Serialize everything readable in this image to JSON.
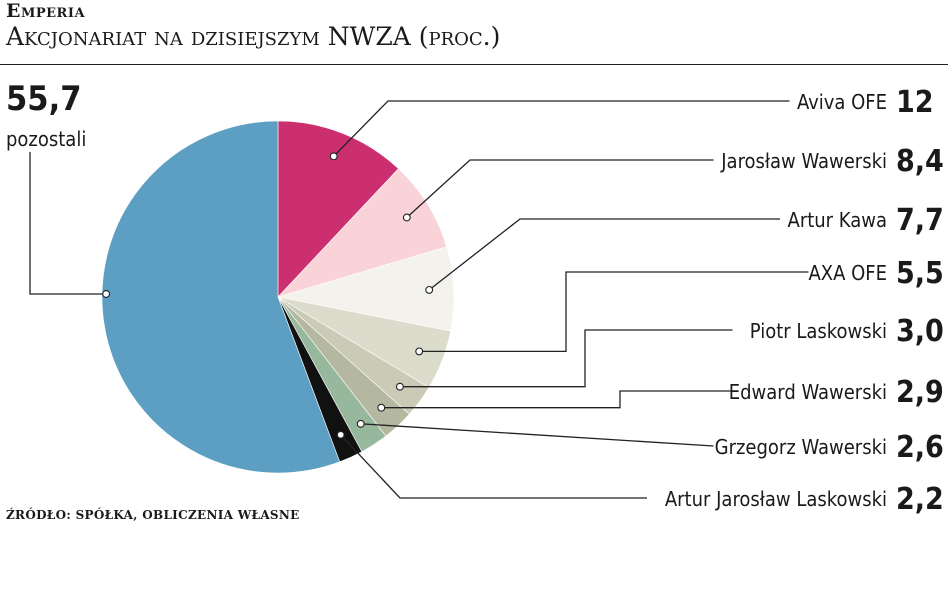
{
  "header": {
    "title": "Emperia",
    "subtitle": "Akcjonariat na dzisiejszym NWZA (proc.)"
  },
  "footer": {
    "source": "ŹRÓDŁO: SPÓŁKA, OBLICZENIA WŁASNE"
  },
  "chart_data": {
    "type": "pie",
    "title": "Akcjonariat na dzisiejszym NWZA (proc.)",
    "labels": [
      "Aviva OFE",
      "Jarosław Wawerski",
      "Artur Kawa",
      "AXA OFE",
      "Piotr Laskowski",
      "Edward Wawerski",
      "Grzegorz Wawerski",
      "Artur Jarosław Laskowski",
      "pozostali"
    ],
    "values": [
      12,
      8.4,
      7.7,
      5.5,
      3.0,
      2.9,
      2.6,
      2.2,
      55.7
    ],
    "value_labels": [
      "12",
      "8,4",
      "7,7",
      "5,5",
      "3,0",
      "2,9",
      "2,6",
      "2,2",
      "55,7"
    ],
    "colors": [
      "#cc2f6f",
      "#f9d3d8",
      "#f3f2ec",
      "#dcdccd",
      "#cacab6",
      "#b5b8a0",
      "#98b89e",
      "#111111",
      "#5c9fc2"
    ],
    "legend": "callouts"
  }
}
